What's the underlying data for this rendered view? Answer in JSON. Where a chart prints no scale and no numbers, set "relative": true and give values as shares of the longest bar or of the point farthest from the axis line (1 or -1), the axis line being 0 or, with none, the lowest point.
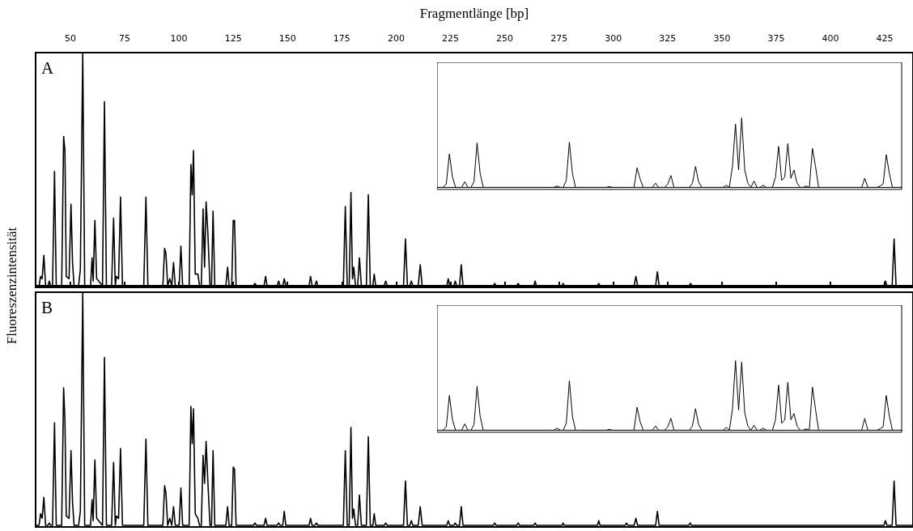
{
  "chart_data": [
    {
      "type": "line",
      "xlabel": "Fragmentlänge [bp]",
      "ylabel": "Fluoreszenzintensität",
      "annotations": [
        "A"
      ],
      "relative": true,
      "tick_labels": "x",
      "xlim": [
        34,
        438
      ],
      "xticks": [
        50,
        75,
        100,
        125,
        150,
        175,
        200,
        225,
        250,
        275,
        300,
        325,
        350,
        375,
        400,
        425
      ],
      "x": [
        34,
        35.6,
        36.3,
        37,
        37.8,
        38.6,
        39.7,
        40.3,
        40.9,
        41.8,
        42.7,
        43.5,
        46,
        46.9,
        47.5,
        48.1,
        49.4,
        50.3,
        51,
        51.7,
        53.8,
        54.6,
        55.7,
        56.6,
        59.3,
        60,
        60.5,
        61.3,
        62.1,
        64.8,
        65.7,
        66.6,
        69,
        69.9,
        70.7,
        71.2,
        72.2,
        73.1,
        74,
        83.8,
        84.8,
        85.7,
        92.6,
        93.4,
        94,
        94.8,
        95.8,
        96.7,
        97.5,
        98.3,
        100.1,
        100.9,
        101.7,
        104.7,
        105.5,
        106.1,
        106.7,
        107.5,
        108.7,
        109.5,
        110.3,
        111.1,
        111.8,
        112.5,
        113.3,
        114.3,
        115,
        115.7,
        116.5,
        121.6,
        122.4,
        123.1,
        124.3,
        125,
        125.6,
        126.3,
        134.3,
        135,
        135.7,
        139.2,
        139.9,
        140.6,
        145.2,
        145.9,
        146.6,
        147.8,
        148.5,
        149.2,
        159.9,
        160.6,
        161.3,
        162.6,
        163.3,
        164,
        175.7,
        176.6,
        177.5,
        178.4,
        179.2,
        179.9,
        180.5,
        181.3,
        182.3,
        183.1,
        184,
        186.3,
        187.2,
        188.1,
        189.3,
        189.9,
        190.6,
        194.5,
        195.2,
        195.9,
        203.4,
        204.3,
        205.2,
        206.3,
        207,
        207.7,
        210.2,
        211.1,
        212,
        223.3,
        224,
        224.7,
        226.6,
        227.2,
        227.9,
        229.2,
        230,
        230.8,
        244.8,
        245.4,
        246,
        255.6,
        256.2,
        256.8,
        263.4,
        264,
        264.6,
        276.4,
        276.9,
        277.4,
        292.7,
        293.3,
        293.9,
        309.6,
        310.4,
        311.2,
        319.5,
        320.3,
        321.1,
        335,
        335.6,
        336.2,
        424.6,
        425.3,
        426,
        428.4,
        429.3,
        430.2,
        438
      ],
      "series": [
        {
          "color": "#000000",
          "values": [
            0,
            0,
            0.04,
            0.03,
            0.13,
            0,
            0,
            0.02,
            0,
            0,
            0.49,
            0,
            0,
            0.64,
            0.58,
            0.04,
            0.03,
            0.35,
            0.1,
            0,
            0,
            0.07,
            1,
            0,
            0,
            0.12,
            0.02,
            0.28,
            0.03,
            0,
            0.79,
            0,
            0,
            0.29,
            0,
            0.04,
            0.03,
            0.38,
            0,
            0,
            0.38,
            0,
            0,
            0.16,
            0.14,
            0,
            0.03,
            0,
            0.1,
            0,
            0,
            0.17,
            0,
            0,
            0.52,
            0.39,
            0.58,
            0.05,
            0.05,
            0,
            0,
            0.33,
            0.08,
            0.36,
            0.23,
            0,
            0,
            0.32,
            0,
            0,
            0.08,
            0,
            0,
            0.28,
            0.28,
            0,
            0,
            0.01,
            0,
            0,
            0.04,
            0,
            0,
            0.02,
            0,
            0,
            0.03,
            0,
            0,
            0.04,
            0,
            0,
            0.02,
            0,
            0,
            0.34,
            0,
            0,
            0.4,
            0.03,
            0.08,
            0,
            0,
            0.12,
            0,
            0,
            0.39,
            0,
            0,
            0.05,
            0,
            0,
            0.02,
            0,
            0,
            0.2,
            0,
            0,
            0.02,
            0,
            0,
            0.09,
            0,
            0,
            0.03,
            0,
            0,
            0.02,
            0,
            0,
            0.09,
            0,
            0,
            0.01,
            0,
            0,
            0.01,
            0,
            0,
            0.02,
            0,
            0,
            0.01,
            0,
            0,
            0.01,
            0,
            0,
            0.04,
            0,
            0,
            0.06,
            0,
            0,
            0.01,
            0,
            0,
            0.02,
            0,
            0,
            0.2,
            0,
            0
          ]
        }
      ]
    },
    {
      "type": "line",
      "relative": true,
      "tick_labels": false,
      "categories": [
        null,
        null,
        null,
        null,
        null,
        null,
        null,
        null,
        null,
        null,
        null,
        null,
        null,
        null,
        null,
        null,
        null,
        null,
        null,
        null,
        null,
        null,
        null,
        null,
        null,
        null,
        null,
        null,
        null,
        null,
        null,
        null,
        null,
        null,
        null,
        null,
        null,
        null,
        null,
        null,
        null,
        null,
        null,
        null,
        null,
        null,
        null,
        null,
        null,
        null,
        null,
        null,
        null,
        null,
        null,
        null,
        null,
        null,
        null,
        null,
        null,
        null,
        null,
        null,
        null,
        null,
        null,
        null,
        null,
        null,
        null,
        null,
        null,
        null,
        null,
        null,
        null,
        null,
        null,
        null,
        null,
        null,
        null,
        null,
        null,
        null,
        null,
        null,
        null,
        null,
        null,
        null,
        null,
        null,
        null,
        null,
        null,
        null,
        null,
        null,
        null,
        null,
        null,
        null,
        null,
        null,
        null,
        null,
        null,
        null,
        null,
        null,
        null,
        null,
        null,
        null,
        null,
        null,
        null,
        null,
        null,
        null,
        null,
        null,
        null,
        null,
        null,
        null,
        null,
        null,
        null,
        null,
        null,
        null,
        null,
        null,
        null,
        null,
        null,
        null,
        null,
        null,
        null,
        null,
        null,
        null,
        null,
        null,
        null,
        null,
        null,
        null
      ],
      "series": [
        {
          "color": "#000000",
          "values": [
            0,
            0,
            0,
            0.05,
            0.48,
            0.15,
            0,
            0,
            0,
            0.08,
            0,
            0,
            0.08,
            0.64,
            0.2,
            0,
            0,
            0,
            0,
            0,
            0,
            0,
            0,
            0,
            0,
            0,
            0,
            0,
            0,
            0,
            0,
            0,
            0,
            0,
            0,
            0,
            0,
            0,
            0,
            0.02,
            0,
            0,
            0.1,
            0.65,
            0.2,
            0,
            0,
            0,
            0,
            0,
            0,
            0,
            0,
            0,
            0,
            0,
            0.01,
            0,
            0,
            0,
            0,
            0,
            0,
            0,
            0,
            0.28,
            0.12,
            0,
            0,
            0,
            0,
            0.06,
            0,
            0,
            0,
            0.05,
            0.17,
            0,
            0,
            0,
            0,
            0,
            0,
            0.06,
            0.3,
            0.08,
            0,
            0,
            0,
            0,
            0,
            0,
            0,
            0,
            0.03,
            0,
            0.3,
            0.91,
            0.25,
            1,
            0.25,
            0.06,
            0,
            0.09,
            0,
            0,
            0.03,
            0,
            0,
            0,
            0.15,
            0.59,
            0.1,
            0.15,
            0.63,
            0.13,
            0.25,
            0.06,
            0,
            0,
            0.02,
            0,
            0.56,
            0.3,
            0,
            0,
            0,
            0,
            0,
            0,
            0,
            0,
            0,
            0,
            0,
            0,
            0,
            0,
            0,
            0.13,
            0,
            0,
            0,
            0,
            0.02,
            0.05,
            0.47,
            0.2,
            0,
            0,
            0,
            0
          ]
        }
      ]
    },
    {
      "type": "line",
      "annotations": [
        "B"
      ],
      "relative": true,
      "tick_labels": false,
      "xlim": [
        34,
        438
      ],
      "x": [
        34,
        35.6,
        36.3,
        37,
        37.8,
        38.6,
        39.7,
        40.3,
        40.9,
        41.8,
        42.7,
        43.5,
        46,
        46.9,
        47.5,
        48.1,
        49.4,
        50.3,
        51,
        51.7,
        53.8,
        54.6,
        55.7,
        56.6,
        59.3,
        60,
        60.5,
        61.3,
        62.1,
        64.8,
        65.7,
        66.6,
        69,
        69.9,
        70.7,
        71.2,
        72.2,
        73.1,
        74,
        83.8,
        84.8,
        85.7,
        92.6,
        93.4,
        94,
        94.8,
        95.8,
        96.7,
        97.5,
        98.3,
        100.1,
        100.9,
        101.7,
        104.7,
        105.5,
        106.1,
        106.7,
        107.5,
        108.7,
        109.5,
        110.3,
        111.1,
        111.8,
        112.5,
        113.3,
        114.3,
        115,
        115.7,
        116.5,
        121.6,
        122.4,
        123.1,
        124.3,
        125,
        125.6,
        126.3,
        134.3,
        135,
        135.7,
        139.2,
        139.9,
        140.6,
        145.2,
        145.9,
        146.6,
        147.8,
        148.5,
        149.2,
        159.9,
        160.6,
        161.3,
        162.6,
        163.3,
        164,
        175.7,
        176.6,
        177.5,
        178.4,
        179.2,
        179.9,
        180.5,
        181.3,
        182.3,
        183.1,
        184,
        186.3,
        187.2,
        188.1,
        189.3,
        189.9,
        190.6,
        194.5,
        195.2,
        195.9,
        203.4,
        204.3,
        205.2,
        206.3,
        207,
        207.7,
        210.2,
        211.1,
        212,
        223.3,
        224,
        224.7,
        226.6,
        227.2,
        227.9,
        229.2,
        230,
        230.8,
        244.8,
        245.4,
        246,
        255.6,
        256.2,
        256.8,
        263.4,
        264,
        264.6,
        276.4,
        276.9,
        277.4,
        292.7,
        293.3,
        293.9,
        305.5,
        306.1,
        306.7,
        309.6,
        310.4,
        311.2,
        319.5,
        320.3,
        321.1,
        334.8,
        335.4,
        336,
        424.6,
        425.3,
        426,
        428.4,
        429.3,
        430.2,
        438
      ],
      "series": [
        {
          "color": "#000000",
          "values": [
            0,
            0,
            0.05,
            0.03,
            0.12,
            0,
            0,
            0.01,
            0,
            0,
            0.44,
            0,
            0,
            0.59,
            0.45,
            0.04,
            0.03,
            0.32,
            0.1,
            0,
            0,
            0.06,
            1,
            0,
            0,
            0.11,
            0.02,
            0.28,
            0.03,
            0,
            0.72,
            0,
            0,
            0.27,
            0,
            0.04,
            0.03,
            0.33,
            0,
            0,
            0.37,
            0,
            0,
            0.17,
            0.14,
            0,
            0.03,
            0,
            0.08,
            0,
            0,
            0.16,
            0,
            0,
            0.51,
            0.35,
            0.5,
            0.05,
            0.03,
            0,
            0,
            0.3,
            0.18,
            0.36,
            0.19,
            0,
            0,
            0.32,
            0,
            0,
            0.08,
            0,
            0,
            0.25,
            0.24,
            0,
            0,
            0.01,
            0,
            0,
            0.03,
            0,
            0,
            0.01,
            0,
            0,
            0.06,
            0,
            0,
            0.03,
            0,
            0,
            0.01,
            0,
            0,
            0.32,
            0,
            0,
            0.42,
            0.03,
            0.07,
            0,
            0,
            0.13,
            0,
            0,
            0.38,
            0,
            0,
            0.05,
            0,
            0,
            0.01,
            0,
            0,
            0.19,
            0,
            0,
            0.02,
            0,
            0,
            0.08,
            0,
            0,
            0.02,
            0,
            0,
            0.01,
            0,
            0,
            0.08,
            0,
            0,
            0.01,
            0,
            0,
            0.01,
            0,
            0,
            0.01,
            0,
            0,
            0.01,
            0,
            0,
            0.02,
            0,
            0,
            0.01,
            0,
            0,
            0.03,
            0,
            0,
            0.06,
            0,
            0,
            0.01,
            0,
            0,
            0.02,
            0,
            0,
            0.19,
            0,
            0
          ]
        }
      ]
    },
    {
      "type": "line",
      "relative": true,
      "tick_labels": false,
      "categories": [
        null,
        null,
        null,
        null,
        null,
        null,
        null,
        null,
        null,
        null,
        null,
        null,
        null,
        null,
        null,
        null,
        null,
        null,
        null,
        null,
        null,
        null,
        null,
        null,
        null,
        null,
        null,
        null,
        null,
        null,
        null,
        null,
        null,
        null,
        null,
        null,
        null,
        null,
        null,
        null,
        null,
        null,
        null,
        null,
        null,
        null,
        null,
        null,
        null,
        null,
        null,
        null,
        null,
        null,
        null,
        null,
        null,
        null,
        null,
        null,
        null,
        null,
        null,
        null,
        null,
        null,
        null,
        null,
        null,
        null,
        null,
        null,
        null,
        null,
        null,
        null,
        null,
        null,
        null,
        null,
        null,
        null,
        null,
        null,
        null,
        null,
        null,
        null,
        null,
        null,
        null,
        null,
        null,
        null,
        null,
        null,
        null,
        null,
        null,
        null,
        null,
        null,
        null,
        null,
        null,
        null,
        null,
        null,
        null,
        null,
        null,
        null,
        null,
        null,
        null,
        null,
        null,
        null,
        null,
        null,
        null,
        null,
        null,
        null,
        null,
        null,
        null,
        null,
        null,
        null,
        null,
        null,
        null,
        null,
        null,
        null,
        null,
        null,
        null,
        null,
        null,
        null,
        null,
        null,
        null,
        null,
        null,
        null,
        null,
        null,
        null,
        null
      ],
      "series": [
        {
          "color": "#000000",
          "values": [
            0,
            0,
            0,
            0.05,
            0.5,
            0.15,
            0,
            0,
            0,
            0.09,
            0,
            0,
            0.08,
            0.63,
            0.2,
            0,
            0,
            0,
            0,
            0,
            0,
            0,
            0,
            0,
            0,
            0,
            0,
            0,
            0,
            0,
            0,
            0,
            0,
            0,
            0,
            0,
            0,
            0,
            0,
            0.03,
            0,
            0,
            0.1,
            0.71,
            0.2,
            0,
            0,
            0,
            0,
            0,
            0,
            0,
            0,
            0,
            0,
            0,
            0.01,
            0,
            0,
            0,
            0,
            0,
            0,
            0,
            0,
            0.33,
            0.12,
            0,
            0,
            0,
            0,
            0.06,
            0,
            0,
            0,
            0.05,
            0.17,
            0,
            0,
            0,
            0,
            0,
            0,
            0.06,
            0.31,
            0.08,
            0,
            0,
            0,
            0,
            0,
            0,
            0,
            0,
            0.04,
            0,
            0.3,
            1,
            0.29,
            0.98,
            0.25,
            0.06,
            0,
            0.07,
            0,
            0,
            0.03,
            0,
            0,
            0,
            0.15,
            0.65,
            0.1,
            0.15,
            0.69,
            0.15,
            0.24,
            0.06,
            0,
            0,
            0.02,
            0,
            0.62,
            0.3,
            0,
            0,
            0,
            0,
            0,
            0,
            0,
            0,
            0,
            0,
            0,
            0,
            0,
            0,
            0,
            0.17,
            0,
            0,
            0,
            0,
            0.02,
            0.05,
            0.5,
            0.2,
            0,
            0,
            0,
            0
          ]
        }
      ]
    }
  ]
}
